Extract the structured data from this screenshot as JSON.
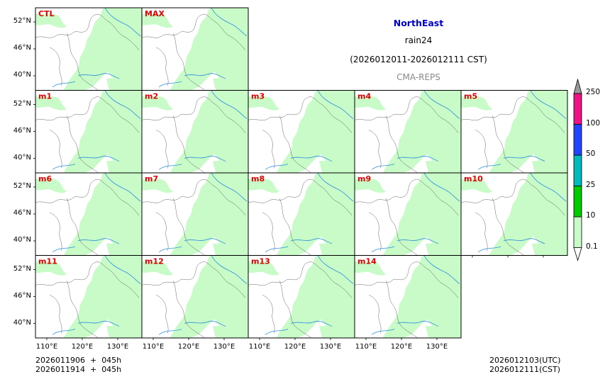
{
  "header": {
    "region": "NorthEast",
    "variable": "rain24",
    "period": "(2026012011-2026012111 CST)",
    "model": "CMA-REPS"
  },
  "colors": {
    "region_title": "#0000cc",
    "model_title": "#888888",
    "panel_label": "#e00000",
    "land_rain": "#c8fbc8",
    "river": "#2a8fe0",
    "border": "#000000"
  },
  "panels": [
    {
      "label": "CTL"
    },
    {
      "label": "MAX"
    },
    {
      "label": "m1"
    },
    {
      "label": "m2"
    },
    {
      "label": "m3"
    },
    {
      "label": "m4"
    },
    {
      "label": "m5"
    },
    {
      "label": "m6"
    },
    {
      "label": "m7"
    },
    {
      "label": "m8"
    },
    {
      "label": "m9"
    },
    {
      "label": "m10"
    },
    {
      "label": "m11"
    },
    {
      "label": "m12"
    },
    {
      "label": "m13"
    },
    {
      "label": "m14"
    }
  ],
  "axes": {
    "lat_ticks": [
      "52°N",
      "46°N",
      "40°N"
    ],
    "lon_ticks": [
      "110°E",
      "120°E",
      "130°E"
    ]
  },
  "colorbar": {
    "levels": [
      "0.1",
      "10",
      "25",
      "50",
      "100",
      "250"
    ],
    "colors": [
      "#c8fbc8",
      "#00cc00",
      "#00bbbb",
      "#2244ff",
      "#ee1188"
    ],
    "extend_max_color": "#999999",
    "extend_min_color": "#ffffff"
  },
  "footer": {
    "init_line1": "2026011906  +  045h",
    "init_line2": "2026011914  +  045h",
    "valid_utc": "2026012103(UTC)",
    "valid_cst": "2026012111(CST)"
  }
}
